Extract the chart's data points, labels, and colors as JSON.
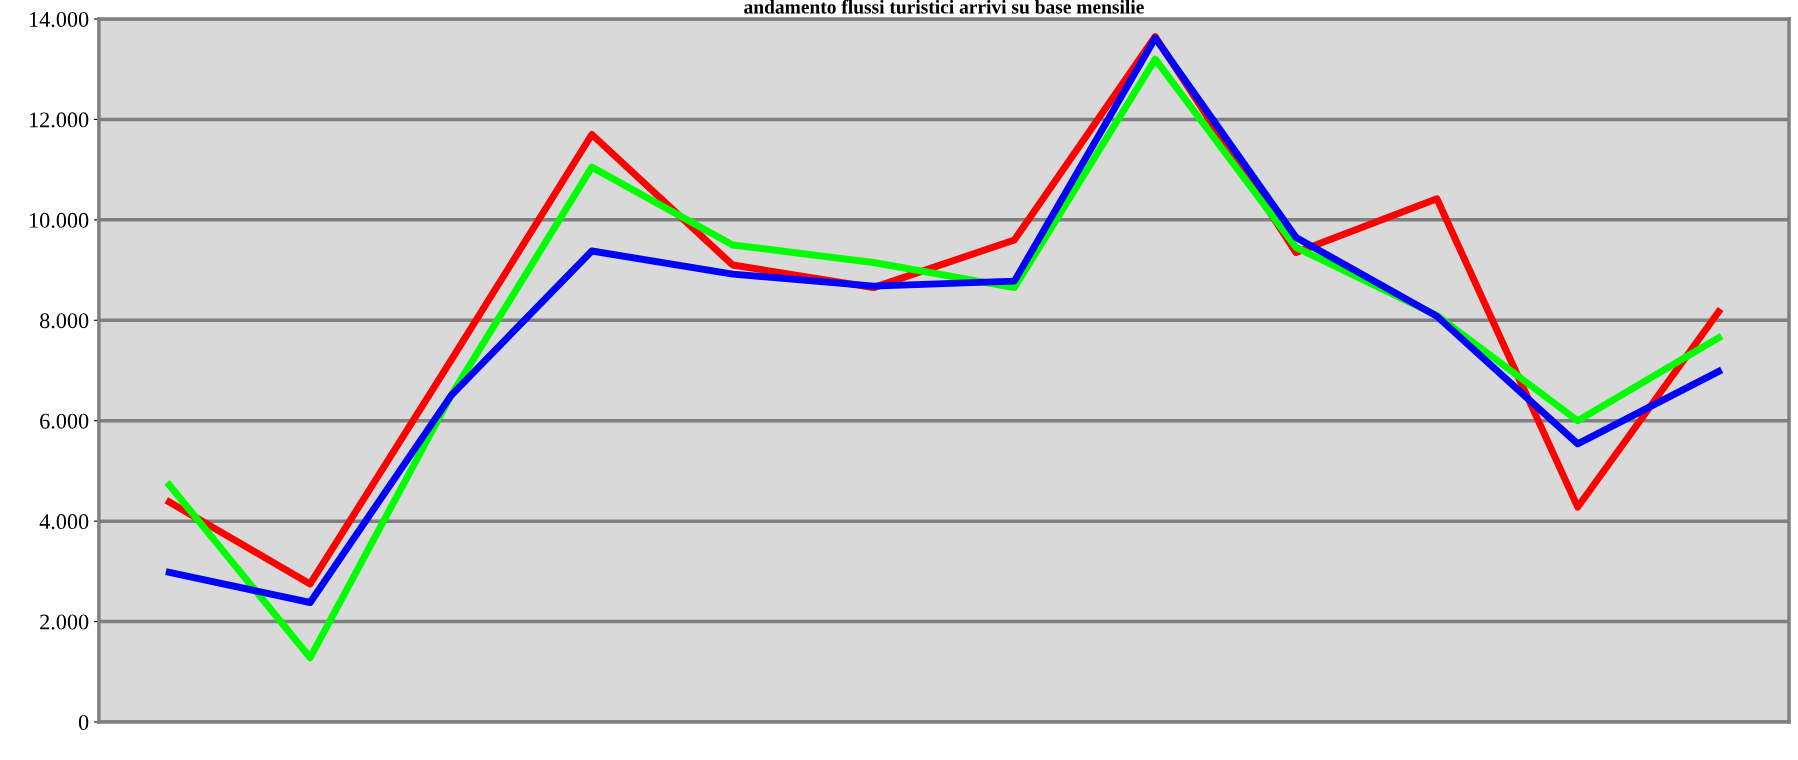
{
  "chart_data": {
    "type": "line",
    "title": "andamento flussi turistici arrivi su base mensilie",
    "categories": [
      null,
      null,
      null,
      null,
      null,
      null,
      null,
      null,
      null,
      null,
      null,
      null
    ],
    "series": [
      {
        "color": "#ff0000",
        "values": [
          4380,
          2750,
          7200,
          11700,
          9100,
          8650,
          9600,
          13650,
          9350,
          10420,
          4280,
          8170
        ]
      },
      {
        "color": "#00ff00",
        "values": [
          4720,
          1280,
          6500,
          11050,
          9500,
          9150,
          8650,
          13200,
          9450,
          8100,
          6000,
          7650
        ]
      },
      {
        "color": "#0000ff",
        "values": [
          2980,
          2380,
          6500,
          9380,
          8920,
          8680,
          8780,
          13620,
          9650,
          8080,
          5540,
          6980
        ]
      }
    ],
    "ylim": [
      0,
      14000
    ],
    "yticks": [
      {
        "value": 0,
        "label": "0"
      },
      {
        "value": 2000,
        "label": "2.000"
      },
      {
        "value": 4000,
        "label": "4.000"
      },
      {
        "value": 6000,
        "label": "6.000"
      },
      {
        "value": 8000,
        "label": "8.000"
      },
      {
        "value": 10000,
        "label": "10.000"
      },
      {
        "value": 12000,
        "label": "12.000"
      },
      {
        "value": 14000,
        "label": "14.000"
      }
    ],
    "grid": "y",
    "marker": "none",
    "line_style": "solid"
  }
}
